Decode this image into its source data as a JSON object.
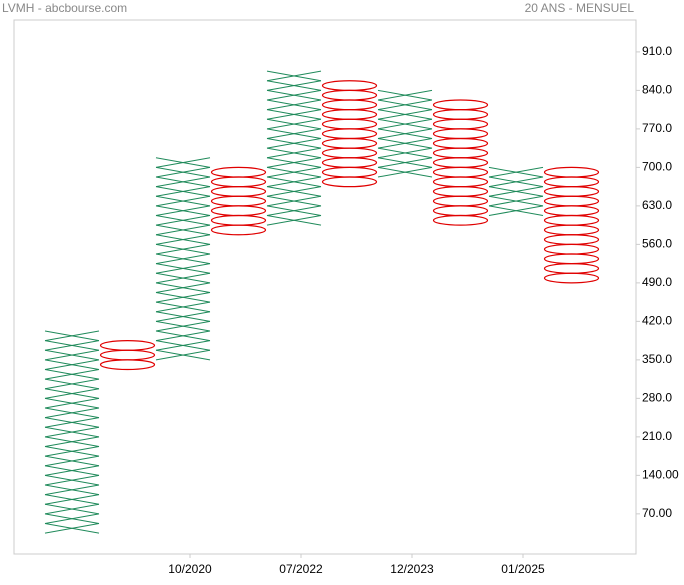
{
  "chart_data": {
    "type": "point_figure",
    "title": "LVMH - abcbourse.com",
    "subtitle": "20 ANS - MENSUEL",
    "box_size": 17.5,
    "x_color": "#1f8a5a",
    "o_color": "#e00000",
    "columns": [
      {
        "kind": "X",
        "low": 35,
        "high": 402.5
      },
      {
        "kind": "O",
        "low": 332.5,
        "high": 385
      },
      {
        "kind": "X",
        "low": 350,
        "high": 717.5
      },
      {
        "kind": "O",
        "low": 577.5,
        "high": 700
      },
      {
        "kind": "X",
        "low": 595,
        "high": 875
      },
      {
        "kind": "O",
        "low": 665,
        "high": 857.5
      },
      {
        "kind": "X",
        "low": 682.5,
        "high": 840
      },
      {
        "kind": "O",
        "low": 595,
        "high": 822.5
      },
      {
        "kind": "X",
        "low": 612.5,
        "high": 700
      },
      {
        "kind": "O",
        "low": 490,
        "high": 700
      }
    ],
    "xticks": [
      {
        "value": 2,
        "label": "10/2020"
      },
      {
        "value": 4,
        "label": "07/2022"
      },
      {
        "value": 6,
        "label": "12/2023"
      },
      {
        "value": 8,
        "label": "01/2025"
      }
    ],
    "ylim": [
      -3,
      968
    ],
    "yticks": [
      {
        "value": 70,
        "label": "70.00"
      },
      {
        "value": 140,
        "label": "140.00"
      },
      {
        "value": 210,
        "label": "210.0"
      },
      {
        "value": 280,
        "label": "280.0"
      },
      {
        "value": 350,
        "label": "350.0"
      },
      {
        "value": 420,
        "label": "420.0"
      },
      {
        "value": 490,
        "label": "490.0"
      },
      {
        "value": 560,
        "label": "560.0"
      },
      {
        "value": 630,
        "label": "630.0"
      },
      {
        "value": 700,
        "label": "700.0"
      },
      {
        "value": 770,
        "label": "770.0"
      },
      {
        "value": 840,
        "label": "840.0"
      },
      {
        "value": 910,
        "label": "910.0"
      }
    ]
  }
}
